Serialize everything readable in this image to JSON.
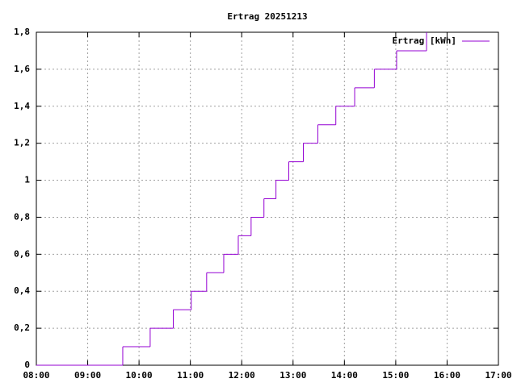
{
  "chart_data": {
    "type": "step",
    "title": "Ertrag 20251213",
    "x": [
      8,
      9.683,
      10.217,
      10.667,
      11.017,
      11.317,
      11.65,
      11.933,
      12.183,
      12.433,
      12.667,
      12.917,
      13.2,
      13.483,
      13.833,
      14.2,
      14.583,
      15.017,
      15.6
    ],
    "series": [
      {
        "name": "Ertrag [kWh]",
        "color": "#9400d3",
        "values": [
          0,
          0.1,
          0.2,
          0.3,
          0.4,
          0.5,
          0.6,
          0.7,
          0.8,
          0.9,
          1,
          1.1,
          1.2,
          1.3,
          1.4,
          1.5,
          1.6,
          1.7,
          1.8
        ]
      }
    ],
    "xlim": [
      8,
      17
    ],
    "xticks": [
      {
        "value": 8,
        "label": "08:00"
      },
      {
        "value": 9,
        "label": "09:00"
      },
      {
        "value": 10,
        "label": "10:00"
      },
      {
        "value": 11,
        "label": "11:00"
      },
      {
        "value": 12,
        "label": "12:00"
      },
      {
        "value": 13,
        "label": "13:00"
      },
      {
        "value": 14,
        "label": "14:00"
      },
      {
        "value": 15,
        "label": "15:00"
      },
      {
        "value": 16,
        "label": "16:00"
      },
      {
        "value": 17,
        "label": "17:00"
      }
    ],
    "ylim": [
      0,
      1.8
    ],
    "yticks": [
      0,
      {
        "value": 0.2,
        "label": "0,2"
      },
      {
        "value": 0.4,
        "label": "0,4"
      },
      {
        "value": 0.6,
        "label": "0,6"
      },
      {
        "value": 0.8,
        "label": "0,8"
      },
      1,
      {
        "value": 1.2,
        "label": "1,2"
      },
      {
        "value": 1.4,
        "label": "1,4"
      },
      {
        "value": 1.6,
        "label": "1,6"
      },
      {
        "value": 1.8,
        "label": "1,8"
      }
    ],
    "grid": true,
    "legend": "top-right"
  }
}
